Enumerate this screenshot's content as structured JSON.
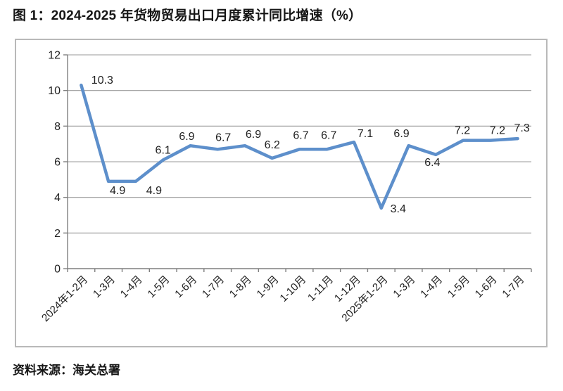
{
  "page": {
    "title": "图 1：2024-2025 年货物贸易出口月度累计同比增速（%）",
    "source": "资料来源：海关总署"
  },
  "chart_data": {
    "type": "line",
    "title": "图 1：2024-2025 年货物贸易出口月度累计同比增速（%）",
    "categories": [
      "2024年1-2月",
      "1-3月",
      "1-4月",
      "1-5月",
      "1-6月",
      "1-7月",
      "1-8月",
      "1-9月",
      "1-10月",
      "1-11月",
      "1-12月",
      "2025年1-2月",
      "1-3月",
      "1-4月",
      "1-5月",
      "1-6月",
      "1-7月"
    ],
    "values": [
      10.3,
      4.9,
      4.9,
      6.1,
      6.9,
      6.7,
      6.9,
      6.2,
      6.7,
      6.7,
      7.1,
      3.4,
      6.9,
      6.4,
      7.2,
      7.2,
      7.3
    ],
    "data_labels": [
      "10.3",
      "4.9",
      "4.9",
      "6.1",
      "6.9",
      "6.7",
      "6.9",
      "6.2",
      "6.7",
      "6.7",
      "7.1",
      "3.4",
      "6.9",
      "6.4",
      "7.2",
      "7.2",
      "7.3"
    ],
    "xlabel": "",
    "ylabel": "",
    "ylim": [
      0,
      12
    ],
    "yticks": [
      0,
      2,
      4,
      6,
      8,
      10,
      12
    ],
    "xlabel_rotation": 45,
    "grid": true,
    "legend": "none",
    "colors": {
      "line": "#5d8fcb",
      "gridline": "#9a9a9a",
      "axis": "#7f7f7f",
      "text": "#1f1f1f",
      "border": "#b9b9b9"
    }
  }
}
